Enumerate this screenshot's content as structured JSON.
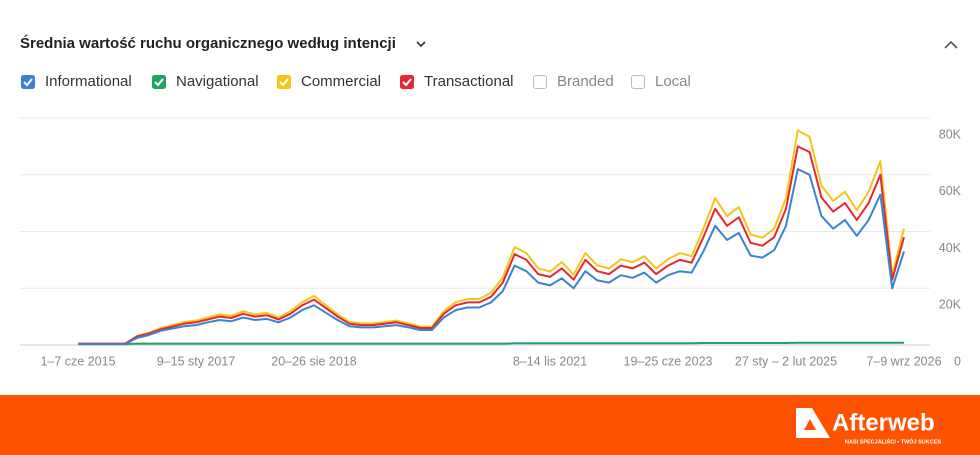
{
  "chart_data": {
    "type": "line",
    "title": "Średnia wartość ruchu organicznego według intencji",
    "categories": [
      "1–7 cze 2015",
      null,
      null,
      null,
      null,
      null,
      null,
      null,
      null,
      null,
      "9–15 sty 2017",
      null,
      null,
      null,
      null,
      null,
      null,
      null,
      null,
      null,
      "20–26 sie 2018",
      null,
      null,
      null,
      null,
      null,
      null,
      null,
      null,
      null,
      null,
      null,
      null,
      null,
      null,
      null,
      null,
      null,
      null,
      null,
      "8–14 lis 2021",
      null,
      null,
      null,
      null,
      null,
      null,
      null,
      null,
      null,
      "19–25 cze 2023",
      null,
      null,
      null,
      null,
      null,
      null,
      null,
      null,
      null,
      "27 sty – 2 lut 2025",
      null,
      null,
      null,
      null,
      null,
      null,
      null,
      null,
      null,
      "7–9 wrz 2026"
    ],
    "series": [
      {
        "name": "Informational",
        "color": "#3b82d6",
        "values": [
          300,
          300,
          300,
          300,
          300,
          2500,
          3500,
          5000,
          5800,
          6600,
          7000,
          8000,
          8800,
          8400,
          9700,
          8800,
          9200,
          8000,
          9700,
          12300,
          14000,
          11400,
          8800,
          6600,
          6200,
          6200,
          6600,
          7000,
          6200,
          5300,
          5300,
          9700,
          12300,
          13200,
          13200,
          15000,
          19000,
          28000,
          26000,
          22000,
          21000,
          23500,
          20000,
          26000,
          22800,
          22000,
          24600,
          23700,
          25500,
          22000,
          24600,
          26000,
          25500,
          33000,
          42000,
          37000,
          39500,
          31500,
          30800,
          33400,
          42000,
          62000,
          60000,
          45500,
          41000,
          44000,
          38500,
          44000,
          53000,
          20000,
          33000
        ]
      },
      {
        "name": "Navigational",
        "color": "#21a366",
        "values": [
          300,
          300,
          300,
          300,
          300,
          500,
          500,
          500,
          500,
          500,
          500,
          500,
          500,
          500,
          500,
          500,
          500,
          500,
          500,
          500,
          500,
          500,
          500,
          500,
          500,
          500,
          500,
          500,
          500,
          500,
          500,
          500,
          500,
          500,
          500,
          500,
          500,
          600,
          600,
          600,
          600,
          600,
          600,
          600,
          600,
          600,
          600,
          600,
          600,
          600,
          600,
          600,
          600,
          700,
          700,
          700,
          700,
          700,
          700,
          700,
          700,
          800,
          800,
          800,
          800,
          800,
          800,
          800,
          800,
          800,
          800
        ]
      },
      {
        "name": "Commercial",
        "color": "#f5c518",
        "values": [
          500,
          500,
          500,
          500,
          500,
          3200,
          4300,
          6000,
          7000,
          8100,
          8600,
          9700,
          10800,
          10300,
          11900,
          10800,
          11300,
          9700,
          11900,
          15100,
          17300,
          14000,
          10800,
          8100,
          7600,
          7600,
          8100,
          8600,
          7600,
          6500,
          6500,
          11900,
          15100,
          16200,
          16200,
          18400,
          23800,
          34500,
          32400,
          27000,
          25900,
          29200,
          24800,
          32400,
          28100,
          27000,
          30200,
          29200,
          31300,
          27000,
          30200,
          32400,
          31300,
          41000,
          51800,
          45400,
          48600,
          38900,
          37800,
          41000,
          51800,
          75600,
          73400,
          56200,
          50800,
          54000,
          47500,
          54000,
          64800,
          24800,
          41000
        ]
      },
      {
        "name": "Transactional",
        "color": "#e3282f",
        "values": [
          500,
          500,
          500,
          500,
          500,
          3000,
          4000,
          5500,
          6500,
          7500,
          8000,
          9000,
          10000,
          9500,
          11000,
          10000,
          10500,
          9000,
          11000,
          14000,
          16000,
          13000,
          10000,
          7500,
          7000,
          7000,
          7500,
          8000,
          7000,
          6000,
          6000,
          11000,
          14000,
          15000,
          15000,
          17000,
          22000,
          32000,
          30000,
          25000,
          24000,
          27000,
          23000,
          30000,
          26000,
          25000,
          28000,
          27000,
          29000,
          25000,
          28000,
          30000,
          29000,
          38000,
          48000,
          42000,
          45000,
          36000,
          35000,
          38000,
          48000,
          70000,
          68000,
          52000,
          47000,
          50000,
          44000,
          50000,
          60000,
          23000,
          38000
        ]
      }
    ],
    "unchecked_filters": [
      "Branded",
      "Local"
    ],
    "ylim": [
      0,
      80000
    ],
    "yticks": [
      0,
      {
        "value": 20000,
        "label": "20K"
      },
      {
        "value": 40000,
        "label": "40K"
      },
      {
        "value": 60000,
        "label": "60K"
      },
      {
        "value": 80000,
        "label": "80K"
      }
    ],
    "grid": true
  },
  "footer": {
    "brand": "Afterweb",
    "tagline": "NASI SPECJALIŚCI • TWÓJ SUKCES"
  }
}
